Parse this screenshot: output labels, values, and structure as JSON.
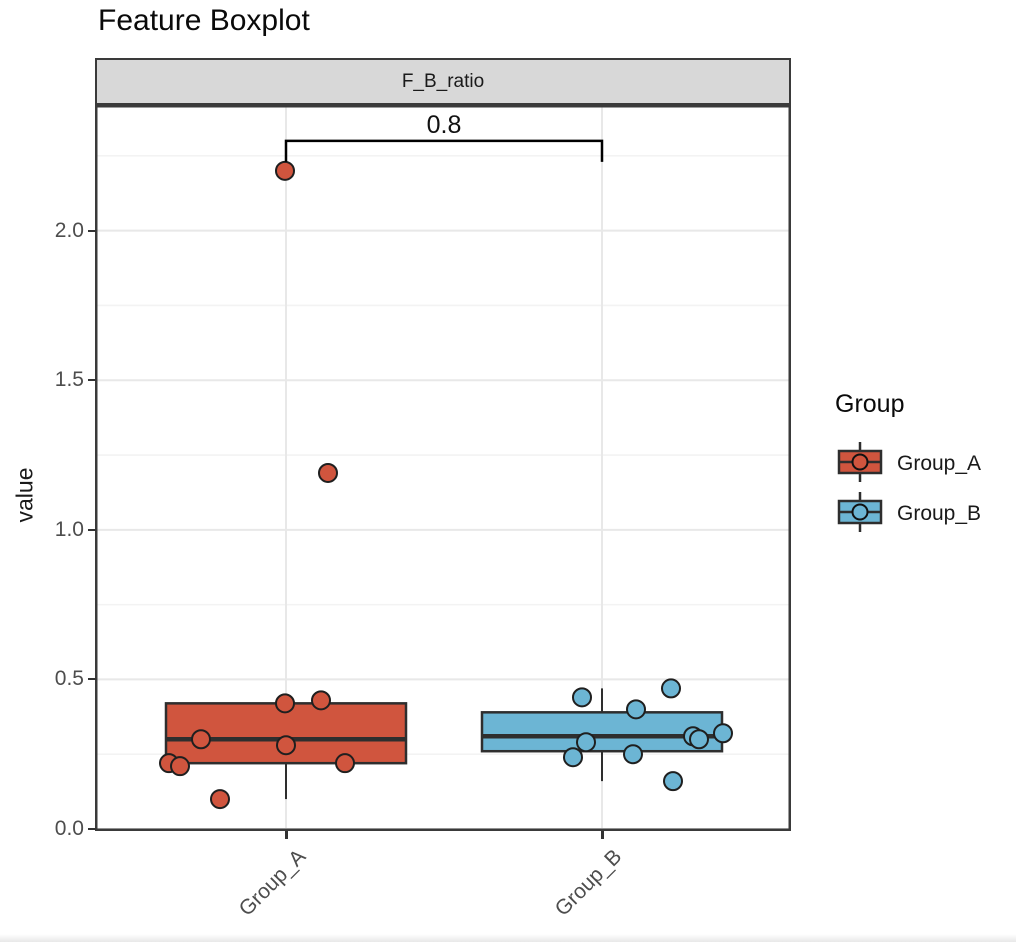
{
  "title": "Feature Boxplot",
  "facet_label": "F_B_ratio",
  "legend": {
    "title": "Group",
    "items": [
      {
        "label": "Group_A",
        "color": "#d0553e"
      },
      {
        "label": "Group_B",
        "color": "#6cb5d4"
      }
    ]
  },
  "chart_data": {
    "type": "boxplot",
    "title": "Feature Boxplot",
    "facet": "F_B_ratio",
    "ylabel": "value",
    "ylim": [
      0,
      2.42
    ],
    "yticks": [
      0.0,
      0.5,
      1.0,
      1.5,
      2.0
    ],
    "yminor": [
      0.25,
      0.75,
      1.25,
      1.75,
      2.25
    ],
    "categories": [
      "Group_A",
      "Group_B"
    ],
    "grid": true,
    "legend_position": "right",
    "annotation": {
      "label": "0.8",
      "from": "Group_A",
      "to": "Group_B",
      "bar_y": 2.3,
      "tip_y": 2.23
    },
    "series": [
      {
        "name": "Group_A",
        "color": "#d0553e",
        "box": {
          "whisker_low": 0.1,
          "q1": 0.22,
          "median": 0.3,
          "q3": 0.42,
          "whisker_high": 0.42
        },
        "points": [
          {
            "dx": -117,
            "value": 0.22
          },
          {
            "dx": -106,
            "value": 0.21
          },
          {
            "dx": -85,
            "value": 0.3
          },
          {
            "dx": -66,
            "value": 0.1
          },
          {
            "dx": -1,
            "value": 0.42
          },
          {
            "dx": 0,
            "value": 0.28
          },
          {
            "dx": 35,
            "value": 0.43
          },
          {
            "dx": 59,
            "value": 0.22
          },
          {
            "dx": -1,
            "value": 2.2
          },
          {
            "dx": 42,
            "value": 1.19
          }
        ]
      },
      {
        "name": "Group_B",
        "color": "#6cb5d4",
        "box": {
          "whisker_low": 0.16,
          "q1": 0.26,
          "median": 0.31,
          "q3": 0.39,
          "whisker_high": 0.47
        },
        "points": [
          {
            "dx": -29,
            "value": 0.24
          },
          {
            "dx": -20,
            "value": 0.44
          },
          {
            "dx": -16,
            "value": 0.29
          },
          {
            "dx": 31,
            "value": 0.25
          },
          {
            "dx": 34,
            "value": 0.4
          },
          {
            "dx": 69,
            "value": 0.47
          },
          {
            "dx": 71,
            "value": 0.16
          },
          {
            "dx": 91,
            "value": 0.31
          },
          {
            "dx": 97,
            "value": 0.3
          },
          {
            "dx": 121,
            "value": 0.32
          }
        ]
      }
    ]
  }
}
